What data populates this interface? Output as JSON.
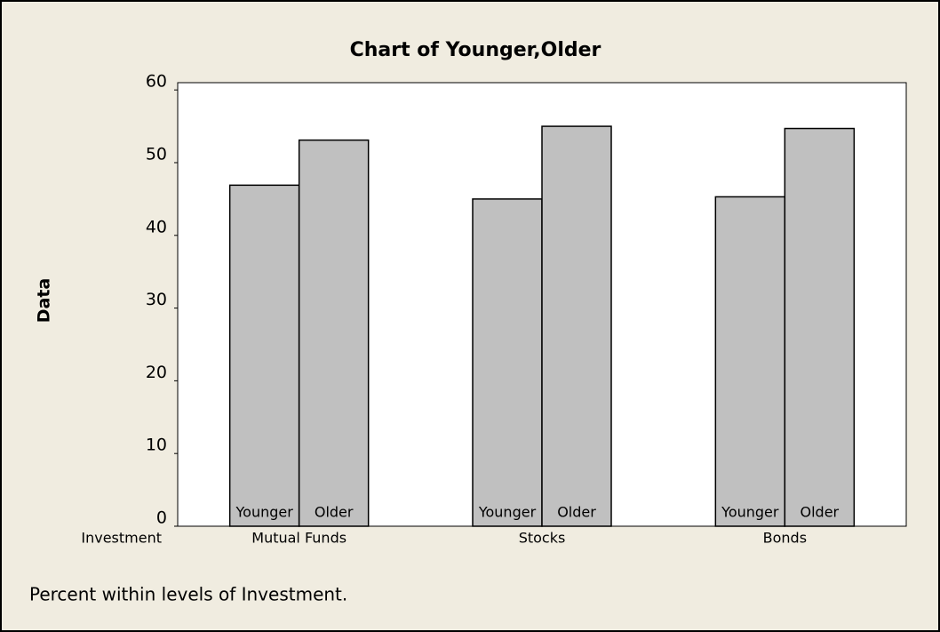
{
  "chart_data": {
    "type": "bar",
    "title": "Chart of Younger,Older",
    "ylabel": "Data",
    "xlabel": "Investment",
    "categories": [
      "Mutual Funds",
      "Stocks",
      "Bonds"
    ],
    "series": [
      {
        "name": "Younger",
        "color": "#c0c0c0",
        "values": [
          46.9,
          45,
          45.3
        ]
      },
      {
        "name": "Older",
        "color": "#c0c0c0",
        "values": [
          53.1,
          55,
          54.7
        ]
      }
    ],
    "ylim": [
      0,
      61
    ],
    "yticks": [
      0,
      10,
      20,
      30,
      40,
      50,
      60
    ],
    "footnote": "Percent within levels of Investment."
  }
}
